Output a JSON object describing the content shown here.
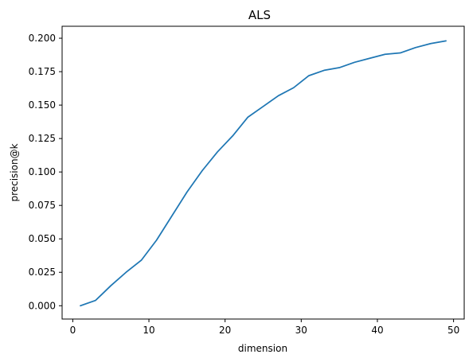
{
  "chart_data": {
    "type": "line",
    "title": "ALS",
    "xlabel": "dimension",
    "ylabel": "precision@k",
    "xlim": [
      -1.4,
      51.4
    ],
    "ylim": [
      -0.00995,
      0.20895
    ],
    "xticks": [
      0,
      10,
      20,
      30,
      40,
      50
    ],
    "yticks": [
      0.0,
      0.025,
      0.05,
      0.075,
      0.1,
      0.125,
      0.15,
      0.175,
      0.2
    ],
    "xtick_labels": [
      "0",
      "10",
      "20",
      "30",
      "40",
      "50"
    ],
    "ytick_labels": [
      "0.000",
      "0.025",
      "0.050",
      "0.075",
      "0.100",
      "0.125",
      "0.150",
      "0.175",
      "0.200"
    ],
    "grid": false,
    "series": [
      {
        "color": "#1f77b4",
        "x": [
          1,
          3,
          5,
          7,
          9,
          11,
          13,
          15,
          17,
          19,
          21,
          23,
          25,
          27,
          29,
          31,
          33,
          35,
          37,
          39,
          41,
          43,
          45,
          47,
          49
        ],
        "y": [
          0.0,
          0.004,
          0.015,
          0.025,
          0.034,
          0.049,
          0.067,
          0.085,
          0.101,
          0.115,
          0.127,
          0.141,
          0.149,
          0.157,
          0.163,
          0.172,
          0.176,
          0.178,
          0.182,
          0.185,
          0.188,
          0.189,
          0.193,
          0.196,
          0.198
        ]
      }
    ]
  }
}
